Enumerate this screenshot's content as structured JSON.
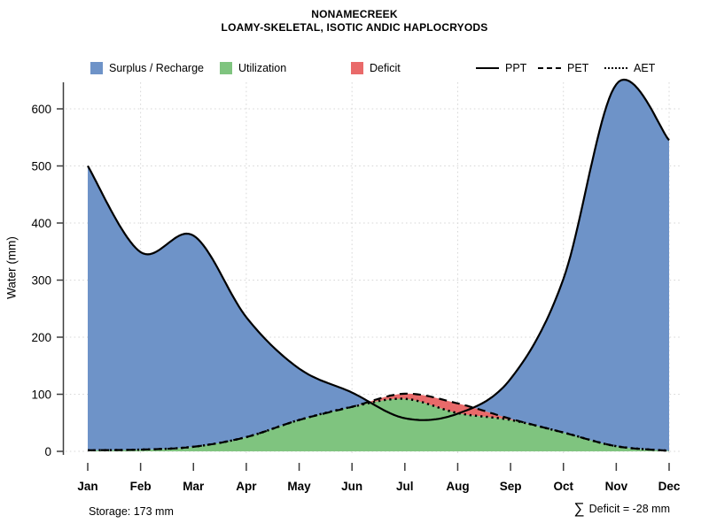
{
  "header": {
    "title": "NONAMECREEK",
    "subtitle": "LOAMY-SKELETAL, ISOTIC ANDIC HAPLOCRYODS"
  },
  "legend": {
    "fills": [
      {
        "label": "Surplus / Recharge",
        "color": "#6e93c8"
      },
      {
        "label": "Utilization",
        "color": "#7fc47f"
      },
      {
        "label": "Deficit",
        "color": "#e96a6a"
      }
    ],
    "lines": [
      {
        "label": "PPT",
        "style": "solid"
      },
      {
        "label": "PET",
        "style": "dashed"
      },
      {
        "label": "AET",
        "style": "dotted"
      }
    ]
  },
  "footer": {
    "storage": "Storage: 173 mm",
    "sigma": "∑",
    "deficit_text": "Deficit = -28 mm"
  },
  "chart_data": {
    "type": "area",
    "title": "NONAMECREEK",
    "subtitle": "LOAMY-SKELETAL, ISOTIC ANDIC HAPLOCRYODS",
    "ylabel": "Water (mm)",
    "xlabel": "",
    "categories": [
      "Jan",
      "Feb",
      "Mar",
      "Apr",
      "May",
      "Jun",
      "Jul",
      "Aug",
      "Sep",
      "Oct",
      "Nov",
      "Dec"
    ],
    "series": [
      {
        "name": "PPT",
        "style": "solid",
        "values": [
          500,
          349,
          378,
          235,
          145,
          103,
          58,
          66,
          127,
          302,
          643,
          545
        ]
      },
      {
        "name": "PET",
        "style": "dashed",
        "values": [
          2,
          3,
          8,
          25,
          55,
          78,
          101,
          84,
          57,
          33,
          9,
          1
        ]
      },
      {
        "name": "AET",
        "style": "dotted",
        "values": [
          2,
          3,
          8,
          25,
          55,
          78,
          92,
          67,
          55,
          33,
          9,
          1
        ]
      }
    ],
    "areas": [
      {
        "name": "Utilization",
        "between": [
          "AET",
          "zero"
        ],
        "color": "#7fc47f"
      },
      {
        "name": "Deficit",
        "between": [
          "PET",
          "AET"
        ],
        "color": "#e96a6a"
      },
      {
        "name": "Surplus / Recharge",
        "between": [
          "PPT",
          "PET"
        ],
        "color": "#6e93c8"
      }
    ],
    "ylim": [
      0,
      660
    ],
    "yticks": [
      0,
      100,
      200,
      300,
      400,
      500,
      600
    ],
    "grid": {
      "horizontal": "every-ytick",
      "vertical": "every-second-month",
      "style": "dotted",
      "color": "#d7d7d7"
    },
    "legend_position": "top",
    "annotations": {
      "storage": "Storage: 173 mm",
      "sum_deficit": "∑ Deficit = -28 mm"
    }
  }
}
